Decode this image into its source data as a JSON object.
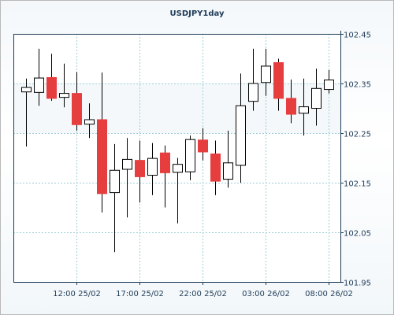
{
  "chart_data": {
    "type": "candlestick",
    "title": "USDJPY1day",
    "ylim": [
      101.95,
      102.45
    ],
    "yticks": [
      "102.45",
      "102.35",
      "102.25",
      "102.15",
      "102.05",
      "101.95"
    ],
    "xticks": [
      "12:00 25/02",
      "17:00 25/02",
      "22:00 25/02",
      "03:00 26/02",
      "08:00 26/02"
    ],
    "grid": true,
    "colors": {
      "up_fill": "#ffffff",
      "down_fill": "#e63e3e",
      "wick": "#000000",
      "grid": "#9ecfd6"
    },
    "candles": [
      {
        "open": 102.333,
        "high": 102.36,
        "low": 102.223,
        "close": 102.342
      },
      {
        "open": 102.332,
        "high": 102.42,
        "low": 102.305,
        "close": 102.361
      },
      {
        "open": 102.362,
        "high": 102.41,
        "low": 102.315,
        "close": 102.32
      },
      {
        "open": 102.322,
        "high": 102.39,
        "low": 102.302,
        "close": 102.33
      },
      {
        "open": 102.33,
        "high": 102.373,
        "low": 102.255,
        "close": 102.267
      },
      {
        "open": 102.268,
        "high": 102.31,
        "low": 102.24,
        "close": 102.277
      },
      {
        "open": 102.277,
        "high": 102.372,
        "low": 102.09,
        "close": 102.128
      },
      {
        "open": 102.13,
        "high": 102.228,
        "low": 102.01,
        "close": 102.175
      },
      {
        "open": 102.177,
        "high": 102.24,
        "low": 102.08,
        "close": 102.197
      },
      {
        "open": 102.195,
        "high": 102.235,
        "low": 102.11,
        "close": 102.162
      },
      {
        "open": 102.165,
        "high": 102.23,
        "low": 102.125,
        "close": 102.199
      },
      {
        "open": 102.21,
        "high": 102.225,
        "low": 102.1,
        "close": 102.17
      },
      {
        "open": 102.171,
        "high": 102.2,
        "low": 102.068,
        "close": 102.187
      },
      {
        "open": 102.172,
        "high": 102.245,
        "low": 102.155,
        "close": 102.237
      },
      {
        "open": 102.236,
        "high": 102.26,
        "low": 102.195,
        "close": 102.212
      },
      {
        "open": 102.208,
        "high": 102.235,
        "low": 102.125,
        "close": 102.153
      },
      {
        "open": 102.157,
        "high": 102.255,
        "low": 102.14,
        "close": 102.19
      },
      {
        "open": 102.185,
        "high": 102.37,
        "low": 102.15,
        "close": 102.305
      },
      {
        "open": 102.314,
        "high": 102.42,
        "low": 102.295,
        "close": 102.35
      },
      {
        "open": 102.352,
        "high": 102.42,
        "low": 102.325,
        "close": 102.385
      },
      {
        "open": 102.392,
        "high": 102.4,
        "low": 102.295,
        "close": 102.32
      },
      {
        "open": 102.32,
        "high": 102.358,
        "low": 102.27,
        "close": 102.288
      },
      {
        "open": 102.29,
        "high": 102.36,
        "low": 102.245,
        "close": 102.303
      },
      {
        "open": 102.3,
        "high": 102.38,
        "low": 102.265,
        "close": 102.34
      },
      {
        "open": 102.338,
        "high": 102.377,
        "low": 102.33,
        "close": 102.357
      }
    ]
  }
}
